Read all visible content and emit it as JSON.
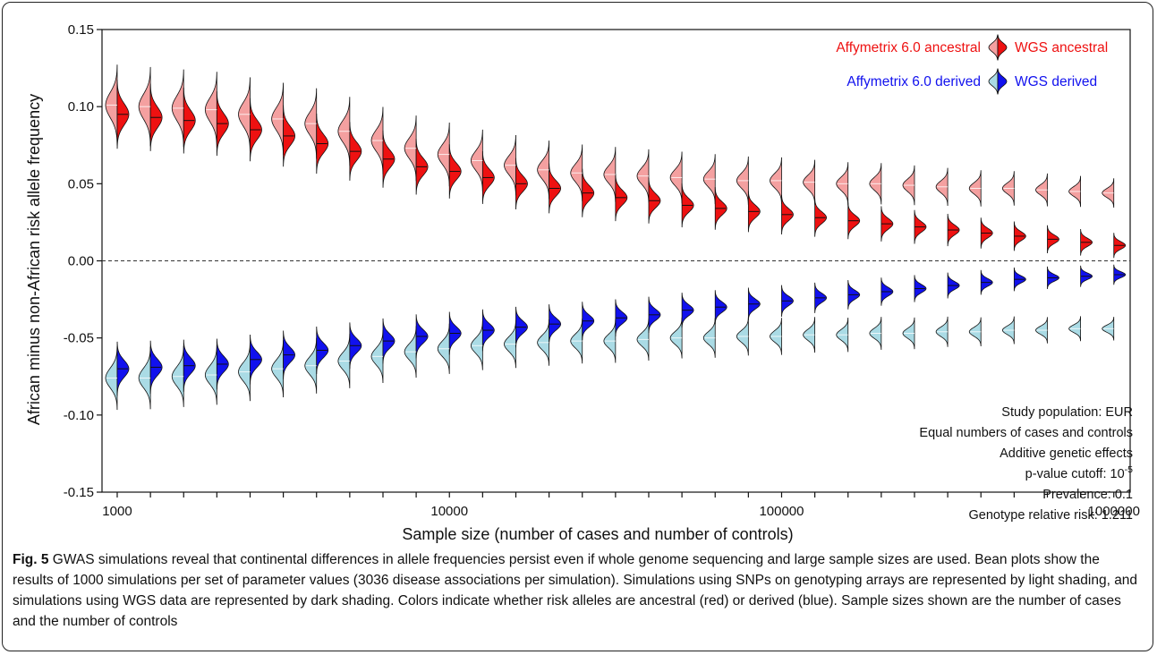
{
  "chart_data": {
    "type": "bean",
    "xlabel": "Sample size (number of cases and number of controls)",
    "ylabel": "African minus non-African risk allele frequency",
    "x_scale": "log",
    "x_ticks": [
      "1000",
      "10000",
      "100000",
      "1000000"
    ],
    "y_ticks": [
      "0.15",
      "0.10",
      "0.05",
      "0.00",
      "-0.05",
      "-0.10",
      "-0.15"
    ],
    "ylim": [
      -0.15,
      0.15
    ],
    "reference_line": 0.0,
    "legend": {
      "placement": "top-right",
      "affy_ancestral": "Affymetrix 6.0 ancestral",
      "wgs_ancestral": "WGS ancestral",
      "affy_derived": "Affymetrix 6.0 derived",
      "wgs_derived": "WGS derived"
    },
    "colors": {
      "affy_ancestral": "#f4a0a0",
      "wgs_ancestral": "#ee1111",
      "affy_derived": "#aadbe5",
      "wgs_derived": "#1111ee",
      "text_red": "#ee1111",
      "text_blue": "#1111ee"
    },
    "annotations": [
      "Study population: EUR",
      "Equal numbers of cases and controls",
      "Additive genetic effects",
      "p-value cutoff: 10",
      "Prevalence: 0.1",
      "Genotype relative risk: 1.211"
    ],
    "annotation_superscript": "-5",
    "x": [
      1000,
      1259,
      1585,
      1995,
      2512,
      3162,
      3981,
      5012,
      6310,
      7943,
      10000,
      12589,
      15849,
      19953,
      25119,
      31623,
      39811,
      50119,
      63096,
      79433,
      100000,
      125893,
      158489,
      199526,
      251189,
      316228,
      398107,
      501187,
      630957,
      794328,
      1000000
    ],
    "series": [
      {
        "name": "Affymetrix 6.0 ancestral",
        "values": [
          0.101,
          0.1,
          0.099,
          0.098,
          0.095,
          0.092,
          0.089,
          0.084,
          0.078,
          0.073,
          0.069,
          0.065,
          0.062,
          0.059,
          0.057,
          0.056,
          0.055,
          0.054,
          0.053,
          0.052,
          0.052,
          0.051,
          0.05,
          0.05,
          0.049,
          0.048,
          0.047,
          0.047,
          0.046,
          0.045,
          0.044
        ]
      },
      {
        "name": "WGS ancestral",
        "values": [
          0.095,
          0.093,
          0.091,
          0.089,
          0.085,
          0.081,
          0.076,
          0.071,
          0.066,
          0.061,
          0.058,
          0.054,
          0.05,
          0.047,
          0.044,
          0.041,
          0.039,
          0.036,
          0.034,
          0.032,
          0.03,
          0.028,
          0.026,
          0.024,
          0.022,
          0.02,
          0.018,
          0.016,
          0.014,
          0.012,
          0.01
        ]
      },
      {
        "name": "Affymetrix 6.0 derived",
        "values": [
          -0.076,
          -0.076,
          -0.075,
          -0.074,
          -0.072,
          -0.07,
          -0.068,
          -0.065,
          -0.062,
          -0.059,
          -0.057,
          -0.055,
          -0.054,
          -0.053,
          -0.052,
          -0.052,
          -0.051,
          -0.05,
          -0.05,
          -0.049,
          -0.049,
          -0.048,
          -0.048,
          -0.047,
          -0.047,
          -0.046,
          -0.046,
          -0.045,
          -0.045,
          -0.044,
          -0.044
        ]
      },
      {
        "name": "WGS derived",
        "values": [
          -0.07,
          -0.069,
          -0.068,
          -0.067,
          -0.064,
          -0.061,
          -0.058,
          -0.055,
          -0.052,
          -0.049,
          -0.047,
          -0.045,
          -0.043,
          -0.041,
          -0.039,
          -0.037,
          -0.035,
          -0.032,
          -0.03,
          -0.028,
          -0.026,
          -0.024,
          -0.022,
          -0.02,
          -0.018,
          -0.016,
          -0.014,
          -0.012,
          -0.011,
          -0.01,
          -0.009
        ]
      }
    ]
  },
  "caption": {
    "label": "Fig. 5",
    "text": " GWAS simulations reveal that continental differences in allele frequencies persist even if whole genome sequencing and large sample sizes are used. Bean plots show the results of 1000 simulations per set of parameter values (3036 disease associations per simulation). Simulations using SNPs on genotyping arrays are represented by light shading, and simulations using WGS data are represented by dark shading. Colors indicate whether risk alleles are ancestral (red) or derived (blue). Sample sizes shown are the number of cases and the number of controls"
  }
}
